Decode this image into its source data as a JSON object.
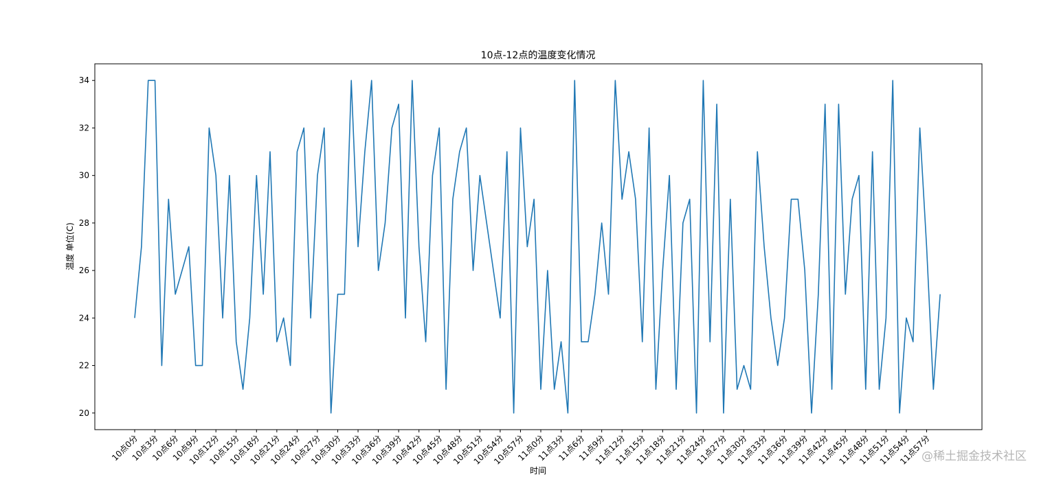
{
  "chart_data": {
    "type": "line",
    "title": "10点-12点的温度变化情况",
    "xlabel": "时间",
    "ylabel": "温度 单位(C)",
    "ylim": [
      19.3,
      34.7
    ],
    "yticks": [
      20,
      22,
      24,
      26,
      28,
      30,
      32,
      34
    ],
    "grid": false,
    "x_tick_step": 3,
    "series": [
      {
        "color": "#1f77b4",
        "x": [
          "10点0分",
          "10点1分",
          "10点2分",
          "10点3分",
          "10点4分",
          "10点5分",
          "10点6分",
          "10点7分",
          "10点8分",
          "10点9分",
          "10点10分",
          "10点11分",
          "10点12分",
          "10点13分",
          "10点14分",
          "10点15分",
          "10点16分",
          "10点17分",
          "10点18分",
          "10点19分",
          "10点20分",
          "10点21分",
          "10点22分",
          "10点23分",
          "10点24分",
          "10点25分",
          "10点26分",
          "10点27分",
          "10点28分",
          "10点29分",
          "10点30分",
          "10点31分",
          "10点32分",
          "10点33分",
          "10点34分",
          "10点35分",
          "10点36分",
          "10点37分",
          "10点38分",
          "10点39分",
          "10点40分",
          "10点41分",
          "10点42分",
          "10点43分",
          "10点44分",
          "10点45分",
          "10点46分",
          "10点47分",
          "10点48分",
          "10点49分",
          "10点50分",
          "10点51分",
          "10点52分",
          "10点53分",
          "10点54分",
          "10点55分",
          "10点56分",
          "10点57分",
          "10点58分",
          "10点59分",
          "11点0分",
          "11点1分",
          "11点2分",
          "11点3分",
          "11点4分",
          "11点5分",
          "11点6分",
          "11点7分",
          "11点8分",
          "11点9分",
          "11点10分",
          "11点11分",
          "11点12分",
          "11点13分",
          "11点14分",
          "11点15分",
          "11点16分",
          "11点17分",
          "11点18分",
          "11点19分",
          "11点20分",
          "11点21分",
          "11点22分",
          "11点23分",
          "11点24分",
          "11点25分",
          "11点26分",
          "11点27分",
          "11点28分",
          "11点29分",
          "11点30分",
          "11点31分",
          "11点32分",
          "11点33分",
          "11点34分",
          "11点35分",
          "11点36分",
          "11点37分",
          "11点38分",
          "11点39分",
          "11点40分",
          "11点41分",
          "11点42分",
          "11点43分",
          "11点44分",
          "11点45分",
          "11点46分",
          "11点47分",
          "11点48分",
          "11点49分",
          "11点50分",
          "11点51分",
          "11点52分",
          "11点53分",
          "11点54分",
          "11点55分",
          "11点56分",
          "11点57分",
          "11点58分",
          "11点59分"
        ],
        "values": [
          24,
          27,
          34,
          34,
          22,
          29,
          25,
          26,
          27,
          22,
          22,
          32,
          30,
          24,
          30,
          23,
          21,
          24,
          30,
          25,
          31,
          23,
          24,
          22,
          31,
          32,
          24,
          30,
          32,
          20,
          25,
          25,
          34,
          27,
          31,
          34,
          26,
          28,
          32,
          33,
          24,
          34,
          27,
          23,
          30,
          32,
          21,
          29,
          31,
          32,
          26,
          30,
          28,
          26,
          24,
          31,
          20,
          32,
          27,
          29,
          21,
          26,
          21,
          23,
          20,
          34,
          23,
          23,
          25,
          28,
          25,
          34,
          29,
          31,
          29,
          23,
          32,
          21,
          26,
          30,
          21,
          28,
          29,
          20,
          34,
          23,
          33,
          20,
          29,
          21,
          22,
          21,
          31,
          27,
          24,
          22,
          24,
          29,
          29,
          26,
          20,
          25,
          33,
          21,
          33,
          25,
          29,
          30,
          21,
          31,
          21,
          24,
          34,
          20,
          24,
          23,
          32,
          27,
          21,
          25
        ]
      }
    ]
  },
  "watermark": "@稀土掘金技术社区"
}
